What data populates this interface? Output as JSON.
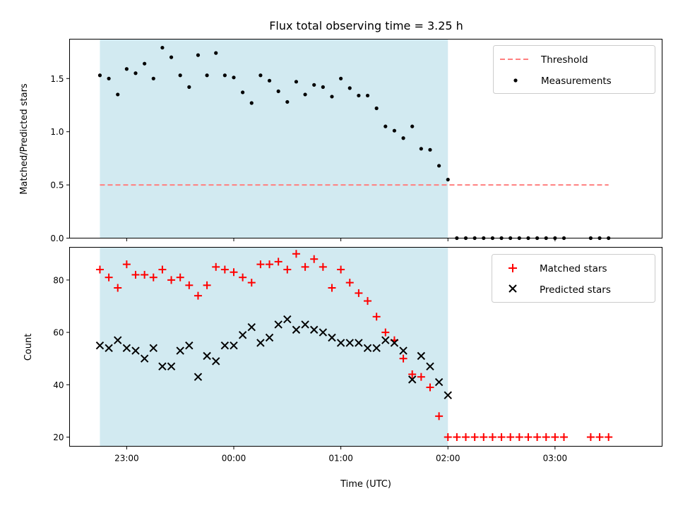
{
  "figure": {
    "title": "Flux total observing time = 3.25 h",
    "observing_window": {
      "start": "22:45",
      "end": "02:00",
      "color": "#add8e6"
    }
  },
  "chart_data": [
    {
      "type": "scatter",
      "panel": "top",
      "ylabel": "Matched/Predicted stars",
      "xlabel": "",
      "ylim": [
        0,
        1.87
      ],
      "yticks": [
        "0.0",
        "0.5",
        "1.0",
        "1.5"
      ],
      "xlim": [
        "22:28",
        "04:00"
      ],
      "legend_position": "top-right",
      "series": [
        {
          "name": "Threshold",
          "style": "dashed-line",
          "color": "#ff7f7f",
          "points": [
            [
              "22:45",
              0.5
            ],
            [
              "03:30",
              0.5
            ]
          ]
        },
        {
          "name": "Measurements",
          "style": "dot",
          "color": "#000000",
          "points": [
            [
              "22:45",
              1.53
            ],
            [
              "22:50",
              1.5
            ],
            [
              "22:55",
              1.35
            ],
            [
              "23:00",
              1.59
            ],
            [
              "23:05",
              1.55
            ],
            [
              "23:10",
              1.64
            ],
            [
              "23:15",
              1.5
            ],
            [
              "23:20",
              1.79
            ],
            [
              "23:25",
              1.7
            ],
            [
              "23:30",
              1.53
            ],
            [
              "23:35",
              1.42
            ],
            [
              "23:40",
              1.72
            ],
            [
              "23:45",
              1.53
            ],
            [
              "23:50",
              1.74
            ],
            [
              "23:55",
              1.53
            ],
            [
              "00:00",
              1.51
            ],
            [
              "00:05",
              1.37
            ],
            [
              "00:10",
              1.27
            ],
            [
              "00:15",
              1.53
            ],
            [
              "00:20",
              1.48
            ],
            [
              "00:25",
              1.38
            ],
            [
              "00:30",
              1.28
            ],
            [
              "00:35",
              1.47
            ],
            [
              "00:40",
              1.35
            ],
            [
              "00:45",
              1.44
            ],
            [
              "00:50",
              1.42
            ],
            [
              "00:55",
              1.33
            ],
            [
              "01:00",
              1.5
            ],
            [
              "01:05",
              1.41
            ],
            [
              "01:10",
              1.34
            ],
            [
              "01:15",
              1.34
            ],
            [
              "01:20",
              1.22
            ],
            [
              "01:25",
              1.05
            ],
            [
              "01:30",
              1.01
            ],
            [
              "01:35",
              0.94
            ],
            [
              "01:40",
              1.05
            ],
            [
              "01:45",
              0.84
            ],
            [
              "01:50",
              0.83
            ],
            [
              "01:55",
              0.68
            ],
            [
              "02:00",
              0.55
            ],
            [
              "02:05",
              0.0
            ],
            [
              "02:10",
              0.0
            ],
            [
              "02:15",
              0.0
            ],
            [
              "02:20",
              0.0
            ],
            [
              "02:25",
              0.0
            ],
            [
              "02:30",
              0.0
            ],
            [
              "02:35",
              0.0
            ],
            [
              "02:40",
              0.0
            ],
            [
              "02:45",
              0.0
            ],
            [
              "02:50",
              0.0
            ],
            [
              "02:55",
              0.0
            ],
            [
              "03:00",
              0.0
            ],
            [
              "03:05",
              0.0
            ],
            [
              "03:20",
              0.0
            ],
            [
              "03:25",
              0.0
            ],
            [
              "03:30",
              0.0
            ]
          ]
        }
      ]
    },
    {
      "type": "scatter",
      "panel": "bottom",
      "ylabel": "Count",
      "xlabel": "Time (UTC)",
      "ylim": [
        16.5,
        92.5
      ],
      "yticks": [
        "20",
        "40",
        "60",
        "80"
      ],
      "xlim": [
        "22:28",
        "04:00"
      ],
      "xticks": [
        "23:00",
        "00:00",
        "01:00",
        "02:00",
        "03:00"
      ],
      "legend_position": "top-right",
      "series": [
        {
          "name": "Matched stars",
          "style": "plus",
          "color": "#ff0000",
          "points": [
            [
              "22:45",
              84
            ],
            [
              "22:50",
              81
            ],
            [
              "22:55",
              77
            ],
            [
              "23:00",
              86
            ],
            [
              "23:05",
              82
            ],
            [
              "23:10",
              82
            ],
            [
              "23:15",
              81
            ],
            [
              "23:20",
              84
            ],
            [
              "23:25",
              80
            ],
            [
              "23:30",
              81
            ],
            [
              "23:35",
              78
            ],
            [
              "23:40",
              74
            ],
            [
              "23:45",
              78
            ],
            [
              "23:50",
              85
            ],
            [
              "23:55",
              84
            ],
            [
              "00:00",
              83
            ],
            [
              "00:05",
              81
            ],
            [
              "00:10",
              79
            ],
            [
              "00:15",
              86
            ],
            [
              "00:20",
              86
            ],
            [
              "00:25",
              87
            ],
            [
              "00:30",
              84
            ],
            [
              "00:35",
              90
            ],
            [
              "00:40",
              85
            ],
            [
              "00:45",
              88
            ],
            [
              "00:50",
              85
            ],
            [
              "00:55",
              77
            ],
            [
              "01:00",
              84
            ],
            [
              "01:05",
              79
            ],
            [
              "01:10",
              75
            ],
            [
              "01:15",
              72
            ],
            [
              "01:20",
              66
            ],
            [
              "01:25",
              60
            ],
            [
              "01:30",
              57
            ],
            [
              "01:35",
              50
            ],
            [
              "01:40",
              44
            ],
            [
              "01:45",
              43
            ],
            [
              "01:50",
              39
            ],
            [
              "01:55",
              28
            ],
            [
              "02:00",
              20
            ],
            [
              "02:05",
              20
            ],
            [
              "02:10",
              20
            ],
            [
              "02:15",
              20
            ],
            [
              "02:20",
              20
            ],
            [
              "02:25",
              20
            ],
            [
              "02:30",
              20
            ],
            [
              "02:35",
              20
            ],
            [
              "02:40",
              20
            ],
            [
              "02:45",
              20
            ],
            [
              "02:50",
              20
            ],
            [
              "02:55",
              20
            ],
            [
              "03:00",
              20
            ],
            [
              "03:05",
              20
            ],
            [
              "03:20",
              20
            ],
            [
              "03:25",
              20
            ],
            [
              "03:30",
              20
            ]
          ]
        },
        {
          "name": "Predicted stars",
          "style": "cross",
          "color": "#000000",
          "points": [
            [
              "22:45",
              55
            ],
            [
              "22:50",
              54
            ],
            [
              "22:55",
              57
            ],
            [
              "23:00",
              54
            ],
            [
              "23:05",
              53
            ],
            [
              "23:10",
              50
            ],
            [
              "23:15",
              54
            ],
            [
              "23:20",
              47
            ],
            [
              "23:25",
              47
            ],
            [
              "23:30",
              53
            ],
            [
              "23:35",
              55
            ],
            [
              "23:40",
              43
            ],
            [
              "23:45",
              51
            ],
            [
              "23:50",
              49
            ],
            [
              "23:55",
              55
            ],
            [
              "00:00",
              55
            ],
            [
              "00:05",
              59
            ],
            [
              "00:10",
              62
            ],
            [
              "00:15",
              56
            ],
            [
              "00:20",
              58
            ],
            [
              "00:25",
              63
            ],
            [
              "00:30",
              65
            ],
            [
              "00:35",
              61
            ],
            [
              "00:40",
              63
            ],
            [
              "00:45",
              61
            ],
            [
              "00:50",
              60
            ],
            [
              "00:55",
              58
            ],
            [
              "01:00",
              56
            ],
            [
              "01:05",
              56
            ],
            [
              "01:10",
              56
            ],
            [
              "01:15",
              54
            ],
            [
              "01:20",
              54
            ],
            [
              "01:25",
              57
            ],
            [
              "01:30",
              56
            ],
            [
              "01:35",
              53
            ],
            [
              "01:40",
              42
            ],
            [
              "01:45",
              51
            ],
            [
              "01:50",
              47
            ],
            [
              "01:55",
              41
            ],
            [
              "02:00",
              36
            ]
          ]
        }
      ]
    }
  ]
}
